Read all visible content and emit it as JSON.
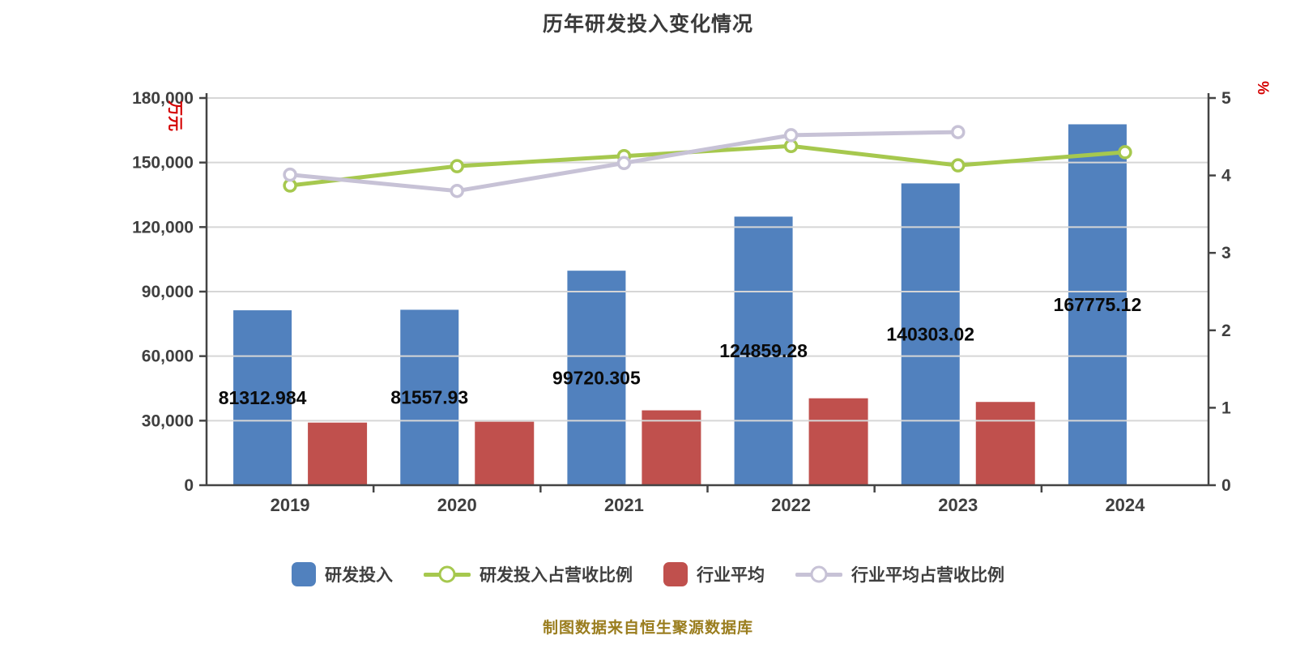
{
  "title": "历年研发投入变化情况",
  "source_note": "制图数据来自恒生聚源数据库",
  "colors": {
    "bar_rd": "#5181BE",
    "bar_industry": "#C0504D",
    "line_rd_ratio": "#A6C84E",
    "line_industry_ratio": "#C7C2D6",
    "title_text": "#3a3a3a",
    "axis_line": "#444444",
    "grid_line": "#d6d6d6",
    "tick_text": "#3f3f3f",
    "bar_label_text": "#0a0a0a",
    "unit_text": "#d40000",
    "source_text": "#9A7D1E",
    "marker_fill": "#ffffff"
  },
  "left_axis": {
    "unit": "万元",
    "max": 180000,
    "min": 0,
    "tick_labels": [
      "0",
      "30,000",
      "60,000",
      "90,000",
      "120,000",
      "150,000",
      "180,000"
    ]
  },
  "right_axis": {
    "unit": "%",
    "max": 5,
    "min": 0,
    "tick_labels": [
      "0",
      "1",
      "2",
      "3",
      "4",
      "5"
    ]
  },
  "chart_data": {
    "type": "bar+line combo, dual axis",
    "categories": [
      "2019",
      "2020",
      "2021",
      "2022",
      "2023",
      "2024"
    ],
    "left_axis_max": 180000,
    "right_axis_max": 5,
    "grid": "horizontal gridlines on",
    "legend_position": "bottom",
    "series": [
      {
        "name": "研发投入",
        "type": "bar",
        "axis": "left",
        "color_key": "bar_rd",
        "values": [
          81312.984,
          81557.93,
          99720.305,
          124859.28,
          140303.02,
          167775.12
        ],
        "labels": [
          "81312.984",
          "81557.93",
          "99720.305",
          "124859.28",
          "140303.02",
          "167775.12"
        ]
      },
      {
        "name": "研发投入占营收比例",
        "type": "line",
        "axis": "right",
        "color_key": "line_rd_ratio",
        "values": [
          3.87,
          4.12,
          4.25,
          4.38,
          4.13,
          4.3
        ]
      },
      {
        "name": "行业平均",
        "type": "bar",
        "axis": "left",
        "color_key": "bar_industry",
        "values": [
          29100,
          29500,
          34800,
          40400,
          38700,
          null
        ]
      },
      {
        "name": "行业平均占营收比例",
        "type": "line",
        "axis": "right",
        "color_key": "line_industry_ratio",
        "values": [
          4.01,
          3.8,
          4.16,
          4.52,
          4.56,
          null
        ]
      }
    ]
  }
}
